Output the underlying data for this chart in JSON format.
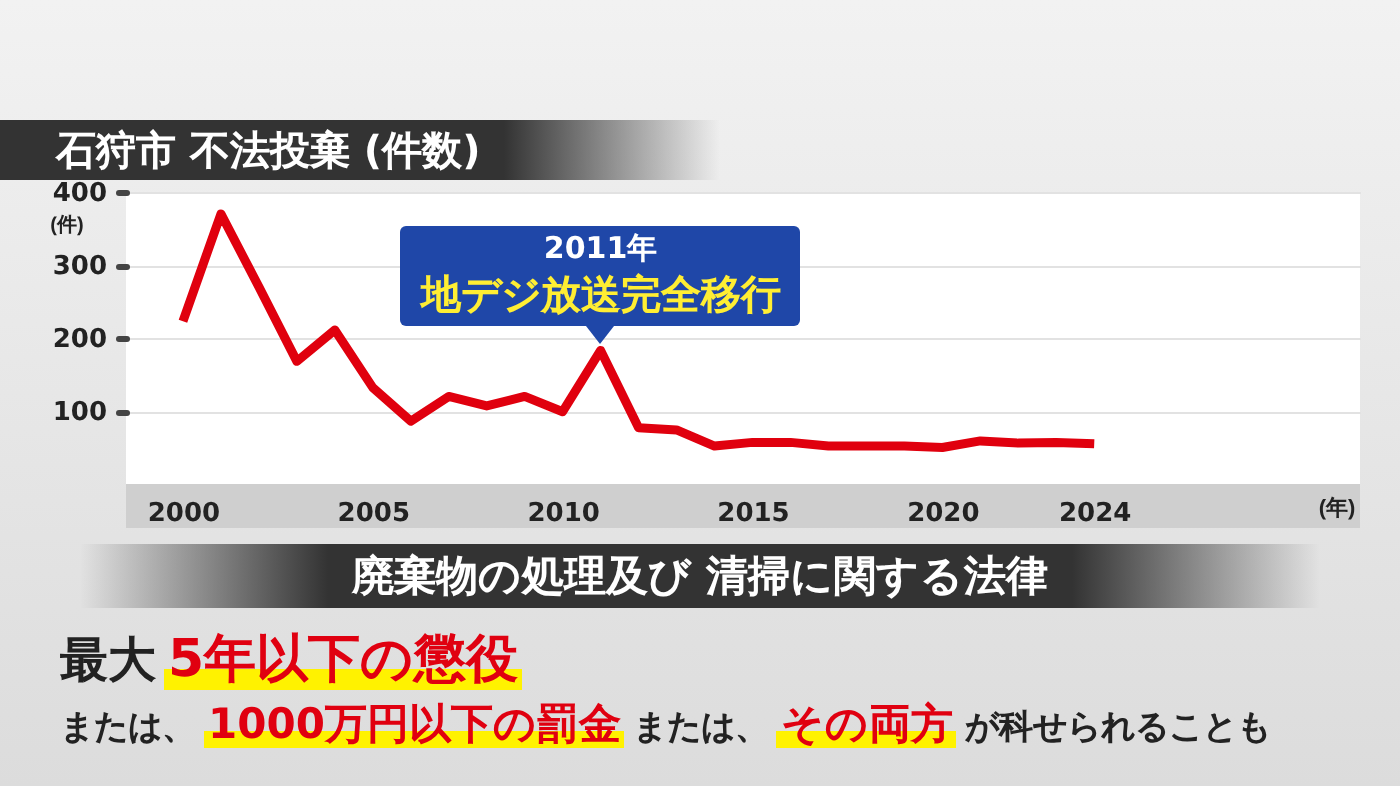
{
  "chart_data": {
    "type": "line",
    "title": "石狩市 不法投棄 (件数)",
    "xlabel": "(年)",
    "ylabel": "(件)",
    "x": [
      2000,
      2001,
      2002,
      2003,
      2004,
      2005,
      2006,
      2007,
      2008,
      2009,
      2010,
      2011,
      2012,
      2013,
      2014,
      2015,
      2016,
      2017,
      2018,
      2019,
      2020,
      2021,
      2022,
      2023,
      2024
    ],
    "series": [
      {
        "color": "#e0000e",
        "values": [
          223,
          370,
          270,
          168,
          211,
          132,
          86,
          120,
          107,
          120,
          99,
          183,
          77,
          74,
          52,
          57,
          57,
          52,
          52,
          52,
          50,
          59,
          56,
          57,
          55
        ]
      }
    ],
    "xlim": [
      1998.5,
      2031
    ],
    "ylim": [
      0,
      400
    ],
    "xticks": [
      2000,
      2005,
      2010,
      2015,
      2020,
      2024
    ],
    "yticks": [
      100,
      200,
      300,
      400
    ],
    "grid": "y",
    "annotations": [
      {
        "text": "2011年",
        "x": 2011,
        "y": 183
      },
      {
        "text": "地デジ放送完全移行",
        "x": 2011,
        "y": 183
      },
      "廃棄物の処理及び 清掃に関する法律",
      "最大",
      "5年以下の懲役",
      "または、",
      "1000万円以下の罰金",
      "または、",
      "その両方",
      "が科せられることも"
    ]
  }
}
